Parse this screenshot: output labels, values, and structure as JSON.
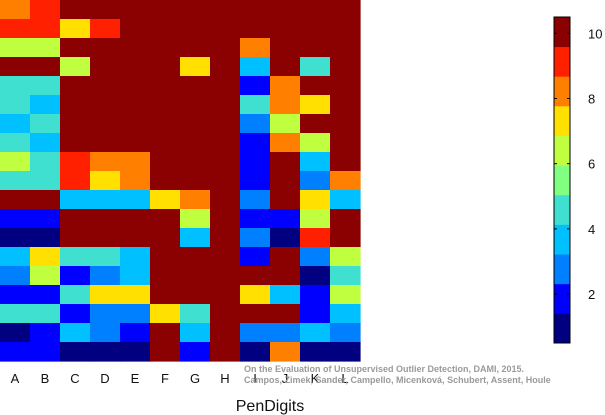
{
  "chart_data": {
    "type": "heatmap",
    "xlabel": "PenDigits",
    "columns": [
      "A",
      "B",
      "C",
      "D",
      "E",
      "F",
      "G",
      "H",
      "I",
      "J",
      "K",
      "L"
    ],
    "color_scale": {
      "min": 1,
      "max": 10,
      "ticks": [
        2,
        4,
        6,
        8,
        10
      ],
      "colors": [
        "#000080",
        "#0000FF",
        "#0080FF",
        "#00C0FF",
        "#40E0D0",
        "#80FF80",
        "#C0FF40",
        "#FFE000",
        "#FF8000",
        "#FF2000",
        "#8B0000"
      ]
    },
    "values": [
      [
        8,
        9.5,
        10.5,
        10.5,
        10.5,
        10.5,
        10.5,
        10.5,
        10.5,
        10.5,
        10.5,
        10.5
      ],
      [
        9.5,
        9.5,
        7,
        9.5,
        10.5,
        10.5,
        10.5,
        10.5,
        10.5,
        10.5,
        10.5,
        10.5
      ],
      [
        6,
        6,
        10.5,
        10.5,
        10.5,
        10.5,
        10.5,
        10.5,
        8,
        10.5,
        10.5,
        10.5
      ],
      [
        10.5,
        10.5,
        6,
        10.5,
        10.5,
        10.5,
        7,
        10.5,
        4,
        10.5,
        5,
        10.5
      ],
      [
        5,
        5,
        10.5,
        10.5,
        10.5,
        10.5,
        10.5,
        10.5,
        2,
        8,
        10.5,
        10.5
      ],
      [
        5,
        4,
        10.5,
        10.5,
        10.5,
        10.5,
        10.5,
        10.5,
        5,
        8,
        7,
        10.5
      ],
      [
        4,
        5,
        10.5,
        10.5,
        10.5,
        10.5,
        10.5,
        10.5,
        3,
        6,
        10.5,
        10.5
      ],
      [
        5,
        4,
        10.5,
        10.5,
        10.5,
        10.5,
        10.5,
        10.5,
        2,
        8,
        6,
        10.5
      ],
      [
        6,
        5,
        9.5,
        8,
        8,
        10.5,
        10.5,
        10.5,
        2,
        10.5,
        4,
        10.5
      ],
      [
        5,
        5,
        9.5,
        7,
        8,
        10.5,
        10.5,
        10.5,
        2,
        10.5,
        3,
        8
      ],
      [
        10.5,
        10.5,
        4,
        4,
        4,
        7,
        8,
        10.5,
        3,
        10.5,
        7,
        4
      ],
      [
        2,
        2,
        10.5,
        10.5,
        10.5,
        10.5,
        6,
        10.5,
        2,
        2,
        6,
        10.5
      ],
      [
        1,
        1,
        10.5,
        10.5,
        10.5,
        10.5,
        4,
        10.5,
        3,
        1,
        9.5,
        10.5
      ],
      [
        4,
        7,
        5,
        5,
        4,
        10.5,
        10.5,
        10.5,
        2,
        10.5,
        3,
        6
      ],
      [
        3,
        6,
        2,
        3,
        4,
        10.5,
        10.5,
        10.5,
        10.5,
        10.5,
        1,
        5
      ],
      [
        2,
        2,
        5,
        7,
        7,
        10.5,
        10.5,
        10.5,
        7,
        4,
        2,
        6
      ],
      [
        5,
        5,
        2,
        3,
        3,
        7,
        5,
        10.5,
        10.5,
        10.5,
        2,
        4
      ],
      [
        1,
        2,
        4,
        3,
        2,
        10.5,
        4,
        10.5,
        3,
        3,
        4,
        3
      ],
      [
        2,
        2,
        1,
        1,
        1,
        10.5,
        2,
        10.5,
        1,
        8,
        1,
        1
      ]
    ],
    "watermark": [
      "On the Evaluation of Unsupervised Outlier Detection, DAMI, 2015.",
      "Campos, Zimek, Sander, Campello, Micenková, Schubert, Assent, Houle"
    ]
  }
}
